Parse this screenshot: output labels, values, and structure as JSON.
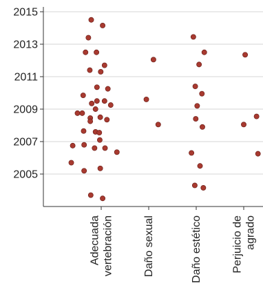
{
  "chart_data": {
    "type": "scatter",
    "title": "",
    "xlabel": "",
    "ylabel": "",
    "ylim": [
      2003.6,
      2015.8
    ],
    "y_ticks": [
      2005,
      2007,
      2009,
      2011,
      2013,
      2015
    ],
    "grid": "horizontal",
    "legend": "none",
    "marker_color": "#a83a30",
    "marker_edge_color": "#6e201a",
    "grid_color": "#d6d6d6",
    "axis_color": "#333333",
    "categories": [
      {
        "lines": [
          "Adecuada",
          "vertebración"
        ],
        "x": 0
      },
      {
        "lines": [
          "Daño sexual"
        ],
        "x": 1
      },
      {
        "lines": [
          "Daño estético"
        ],
        "x": 2
      },
      {
        "lines": [
          "Perjuicio de",
          "agrado"
        ],
        "x": 3
      }
    ],
    "series": [
      {
        "category": "Adecuada vertebración",
        "points": [
          [
            -0.63,
            2005.7
          ],
          [
            -0.6,
            2006.75
          ],
          [
            -0.5,
            2008.75
          ],
          [
            -0.4,
            2008.75
          ],
          [
            -0.38,
            2009.85
          ],
          [
            -0.37,
            2007.65
          ],
          [
            -0.36,
            2006.8
          ],
          [
            -0.36,
            2005.2
          ],
          [
            -0.33,
            2012.5
          ],
          [
            -0.27,
            2013.4
          ],
          [
            -0.24,
            2011.4
          ],
          [
            -0.23,
            2008.45
          ],
          [
            -0.23,
            2008.25
          ],
          [
            -0.22,
            2003.7
          ],
          [
            -0.21,
            2014.5
          ],
          [
            -0.2,
            2009.35
          ],
          [
            -0.14,
            2006.6
          ],
          [
            -0.12,
            2007.6
          ],
          [
            -0.12,
            2009.0
          ],
          [
            -0.1,
            2012.5
          ],
          [
            -0.09,
            2009.5
          ],
          [
            -0.09,
            2010.35
          ],
          [
            -0.04,
            2007.55
          ],
          [
            -0.03,
            2007.1
          ],
          [
            -0.02,
            2008.5
          ],
          [
            -0.02,
            2005.35
          ],
          [
            -0.01,
            2011.3
          ],
          [
            0.03,
            2014.15
          ],
          [
            0.03,
            2003.5
          ],
          [
            0.07,
            2011.7
          ],
          [
            0.07,
            2009.5
          ],
          [
            0.08,
            2006.6
          ],
          [
            0.12,
            2008.35
          ],
          [
            0.14,
            2010.25
          ],
          [
            0.2,
            2009.25
          ],
          [
            0.33,
            2006.35
          ]
        ]
      },
      {
        "category": "Daño sexual",
        "points": [
          [
            0.95,
            2009.6
          ],
          [
            1.1,
            2012.05
          ],
          [
            1.2,
            2008.05
          ]
        ]
      },
      {
        "category": "Daño estético",
        "points": [
          [
            1.9,
            2006.3
          ],
          [
            1.94,
            2013.45
          ],
          [
            1.97,
            2004.3
          ],
          [
            1.98,
            2010.4
          ],
          [
            1.99,
            2008.4
          ],
          [
            2.02,
            2009.2
          ],
          [
            2.06,
            2011.75
          ],
          [
            2.08,
            2005.5
          ],
          [
            2.12,
            2009.95
          ],
          [
            2.13,
            2007.9
          ],
          [
            2.15,
            2004.15
          ],
          [
            2.17,
            2012.5
          ]
        ]
      },
      {
        "category": "Perjuicio de agrado",
        "points": [
          [
            3.0,
            2008.05
          ],
          [
            3.03,
            2012.35
          ],
          [
            3.27,
            2008.55
          ],
          [
            3.3,
            2006.25
          ]
        ]
      }
    ]
  }
}
